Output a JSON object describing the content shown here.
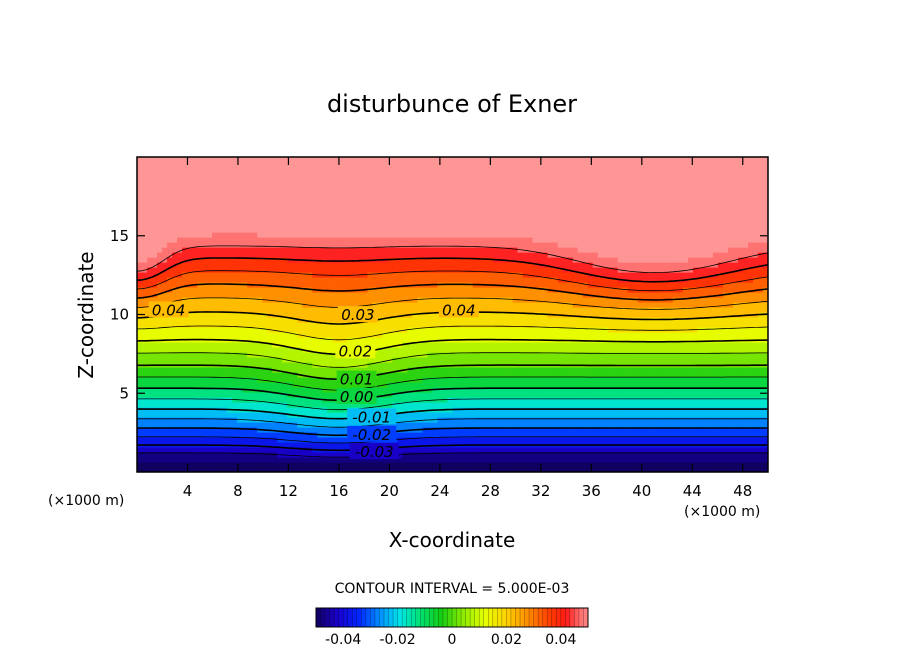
{
  "chart_data": {
    "type": "contour",
    "title": "disturbunce of Exner",
    "xlabel": "X-coordinate",
    "ylabel": "Z-coordinate",
    "x_unit": "(×1000 m)",
    "z_unit": "(×1000 m)",
    "xlim": [
      0,
      50
    ],
    "ylim": [
      0,
      20
    ],
    "x_ticks": [
      4,
      8,
      12,
      16,
      20,
      24,
      28,
      32,
      36,
      40,
      44,
      48
    ],
    "y_ticks": [
      5,
      10,
      15
    ],
    "contour_interval_label": "CONTOUR INTERVAL = 5.000E-03",
    "contour_interval": 0.005,
    "value_range": [
      -0.05,
      0.05
    ],
    "contour_labels": [
      {
        "text": "0.04",
        "x": 2.5,
        "z": 10.2
      },
      {
        "text": "0.04",
        "x": 25.5,
        "z": 10.2
      },
      {
        "text": "0.03",
        "x": 17.5,
        "z": 9.9
      },
      {
        "text": "0.02",
        "x": 17.3,
        "z": 7.6
      },
      {
        "text": "0.01",
        "x": 17.4,
        "z": 5.8
      },
      {
        "text": "0.00",
        "x": 17.4,
        "z": 4.7
      },
      {
        "text": "-0.01",
        "x": 18.6,
        "z": 3.4
      },
      {
        "text": "-0.02",
        "x": 18.6,
        "z": 2.3
      },
      {
        "text": "-0.03",
        "x": 18.8,
        "z": 1.2
      }
    ],
    "colorbar": {
      "ticks": [
        -0.04,
        -0.02,
        0,
        0.02,
        0.04
      ],
      "tick_labels": [
        "-0.04",
        "-0.02",
        "0",
        "0.02",
        "0.04"
      ]
    }
  }
}
